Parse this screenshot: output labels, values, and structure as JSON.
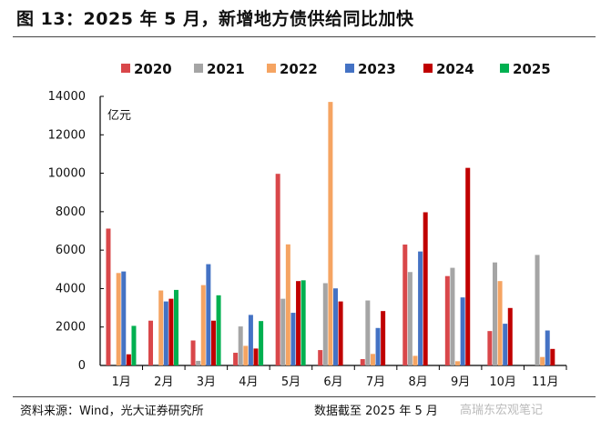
{
  "title": "图 13：2025 年 5 月，新增地方债供给同比加快",
  "footer": {
    "source": "资料来源：Wind，光大证券研究所",
    "as_of": "数据截至 2025 年 5 月",
    "watermark": "高瑞东宏观笔记"
  },
  "chart_data": {
    "type": "bar",
    "title": "",
    "xlabel": "",
    "ylabel": "亿元",
    "ylim": [
      0,
      14000
    ],
    "yticks": [
      0,
      2000,
      4000,
      6000,
      8000,
      10000,
      12000,
      14000
    ],
    "grid": false,
    "legend": "top",
    "categories": [
      "1月",
      "2月",
      "3月",
      "4月",
      "5月",
      "6月",
      "7月",
      "8月",
      "9月",
      "10月",
      "11月"
    ],
    "series": [
      {
        "name": "2020",
        "color": "#d9474a",
        "values": [
          7120,
          2330,
          1300,
          660,
          9970,
          800,
          330,
          6290,
          4650,
          1790,
          null
        ]
      },
      {
        "name": "2021",
        "color": "#a5a5a5",
        "values": [
          null,
          null,
          240,
          2030,
          3470,
          4280,
          3380,
          4860,
          5080,
          5360,
          5750
        ]
      },
      {
        "name": "2022",
        "color": "#f5a462",
        "values": [
          4810,
          3900,
          4180,
          1020,
          6300,
          13710,
          600,
          500,
          220,
          4390,
          440
        ]
      },
      {
        "name": "2023",
        "color": "#4472c4",
        "values": [
          4890,
          3330,
          5270,
          2630,
          2740,
          4010,
          1950,
          5930,
          3540,
          2170,
          1820
        ]
      },
      {
        "name": "2024",
        "color": "#c00000",
        "values": [
          580,
          3470,
          2330,
          880,
          4390,
          3330,
          2830,
          7970,
          10280,
          2990,
          860
        ]
      },
      {
        "name": "2025",
        "color": "#00b050",
        "values": [
          2060,
          3930,
          3650,
          2310,
          4430,
          null,
          null,
          null,
          null,
          null,
          null
        ]
      }
    ]
  }
}
